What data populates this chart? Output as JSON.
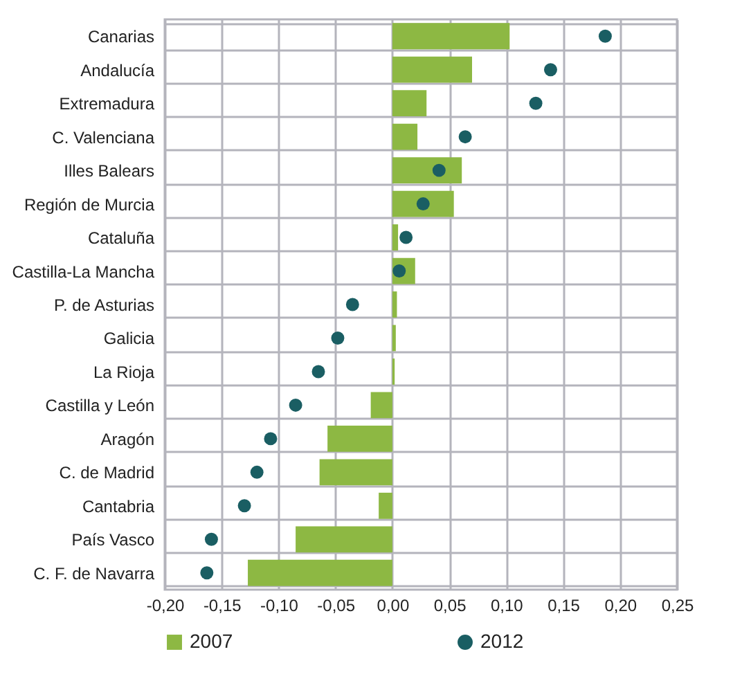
{
  "chart_data": {
    "type": "bar",
    "orientation": "horizontal",
    "categories": [
      "Canarias",
      "Andalucía",
      "Extremadura",
      "C. Valenciana",
      "Illes Balears",
      "Región de Murcia",
      "Cataluña",
      "Castilla-La Mancha",
      "P. de Asturias",
      "Galicia",
      "La Rioja",
      "Castilla y León",
      "Aragón",
      "C. de Madrid",
      "Cantabria",
      "País Vasco",
      "C. F. de Navarra"
    ],
    "series": [
      {
        "name": "2007",
        "color": "#8db843",
        "values": [
          0.103,
          0.07,
          0.03,
          0.022,
          0.061,
          0.054,
          0.005,
          0.02,
          0.004,
          0.003,
          0.002,
          -0.019,
          -0.057,
          -0.064,
          -0.012,
          -0.085,
          -0.127
        ]
      },
      {
        "name": "2012",
        "type": "scatter",
        "color": "#1a5e63",
        "values": [
          0.187,
          0.139,
          0.126,
          0.064,
          0.041,
          0.027,
          0.012,
          0.006,
          -0.035,
          -0.048,
          -0.065,
          -0.085,
          -0.107,
          -0.119,
          -0.13,
          -0.159,
          -0.163
        ]
      }
    ],
    "xlim": [
      -0.2,
      0.25
    ],
    "xticks": [
      {
        "value": -0.2,
        "label": "-0,20"
      },
      {
        "value": -0.15,
        "label": "-0,15"
      },
      {
        "value": -0.1,
        "label": "-0,10"
      },
      {
        "value": -0.05,
        "label": "-0,05"
      },
      {
        "value": 0,
        "label": "0,00"
      },
      {
        "value": 0.05,
        "label": "0,05"
      },
      {
        "value": 0.1,
        "label": "0,10"
      },
      {
        "value": 0.15,
        "label": "0,15"
      },
      {
        "value": 0.2,
        "label": "0,20"
      },
      {
        "value": 0.25,
        "label": "0,25"
      }
    ],
    "grid": true,
    "marker": "circle",
    "legend": "bottom"
  }
}
